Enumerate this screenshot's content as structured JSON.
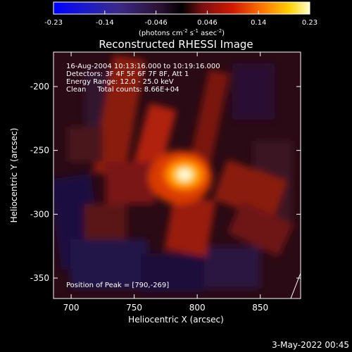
{
  "app": {
    "date_stamp": "3-May-2022 00:45"
  },
  "chart_data": {
    "type": "heatmap",
    "title": "Reconstructed RHESSI Image",
    "xlabel": "Heliocentric X (arcsec)",
    "ylabel": "Heliocentric Y (arcsec)",
    "xlim": [
      686,
      882
    ],
    "ylim": [
      -366,
      -173
    ],
    "x_ticks": [
      700,
      750,
      800,
      850
    ],
    "y_ticks": [
      -200,
      -250,
      -300,
      -350
    ],
    "colorbar": {
      "range": [
        -0.23,
        0.23
      ],
      "ticks": [
        "-0.23",
        "-0.14",
        "-0.046",
        "0.046",
        "0.14",
        "0.23"
      ],
      "unit_prefix": "(photons cm",
      "unit_sup1": "-2",
      "unit_mid": " s",
      "unit_sup2": "-1",
      "unit_mid2": " asec",
      "unit_sup3": "-2",
      "unit_suffix": ")"
    },
    "info": {
      "line1": "16-Aug-2004 10:13:16.000 to 10:19:16.000",
      "line2": "Detectors: 3F 4F 5F 6F 7F 8F, Att 1",
      "line3": "Energy Range: 12.0 - 25.0 keV",
      "line4": "Clean     Total counts: 8.66E+04"
    },
    "peak_label": "Position of Peak = [790,-269]",
    "peak": [
      790,
      -269
    ],
    "grid": false
  }
}
